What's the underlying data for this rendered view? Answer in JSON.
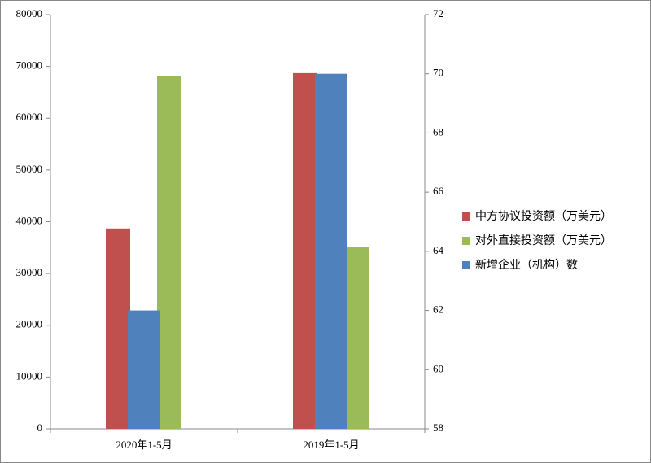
{
  "chart_data": {
    "type": "bar",
    "categories": [
      "2020年1-5月",
      "2019年1-5月"
    ],
    "series": [
      {
        "name": "中方协议投资额（万美元）",
        "color": "#c0504d",
        "values": [
          38700,
          68700
        ]
      },
      {
        "name": "对外直接投资额（万美元）",
        "color": "#9bbb59",
        "values": [
          68200,
          35200
        ]
      },
      {
        "name": "新增企业（机构）数",
        "color": "#4f81bd",
        "values": [
          62,
          70
        ],
        "axis": "y2"
      }
    ],
    "ylim": [
      0,
      80000
    ],
    "yticks": [
      0,
      10000,
      20000,
      30000,
      40000,
      50000,
      60000,
      70000,
      80000
    ],
    "y2lim": [
      58,
      72
    ],
    "y2ticks": [
      58,
      60,
      62,
      64,
      66,
      68,
      70,
      72
    ],
    "legend": "right"
  }
}
